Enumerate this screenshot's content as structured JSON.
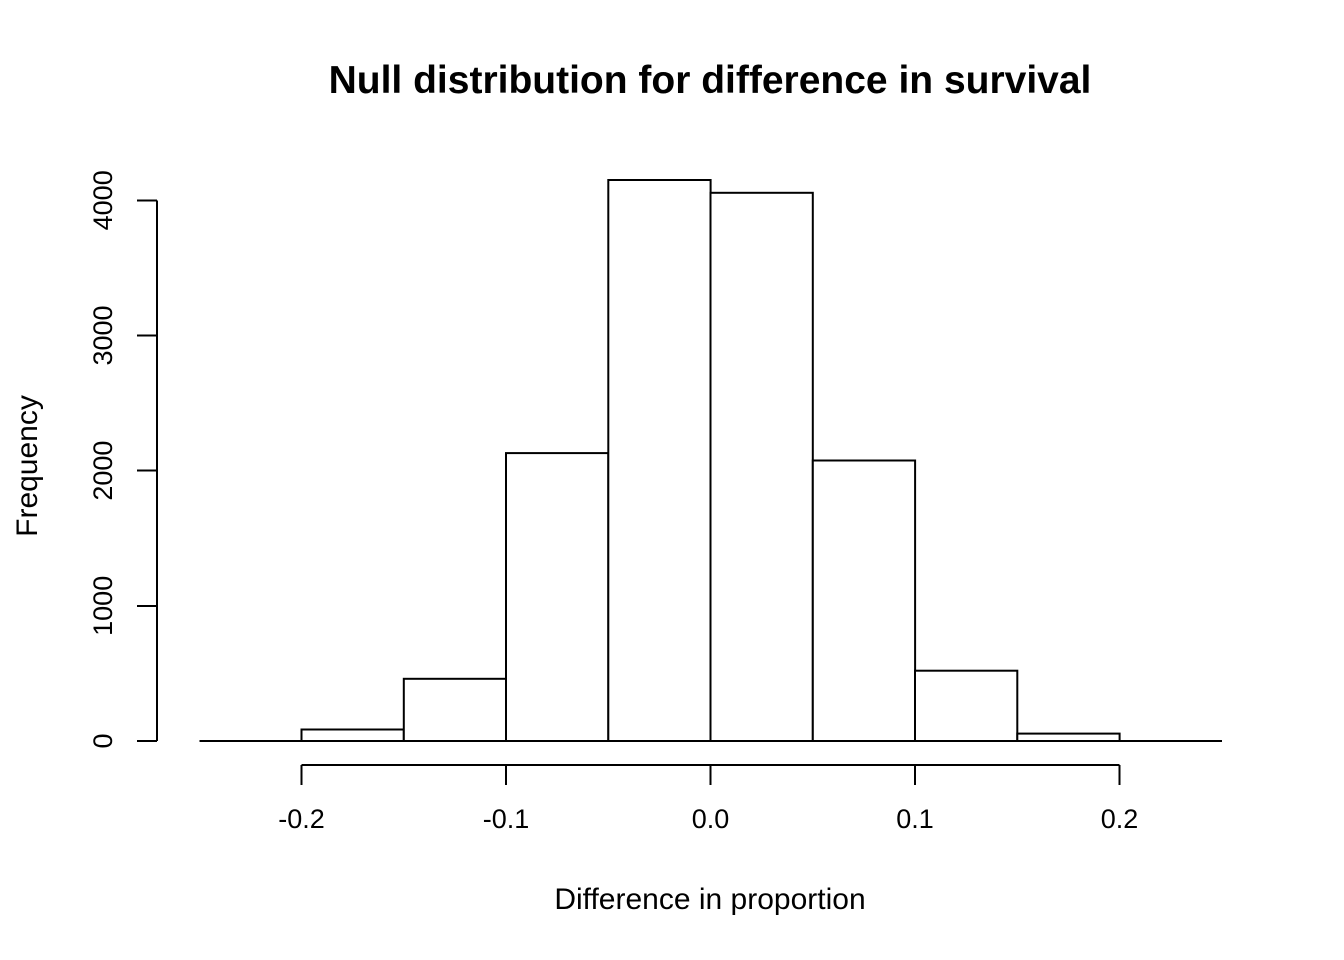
{
  "figure": {
    "title": "Null distribution for difference in survival",
    "xlabel": "Difference in proportion",
    "ylabel": "Frequency"
  },
  "colors": {
    "background": "#ffffff",
    "bar_fill": "#ffffff",
    "bar_stroke": "#000000",
    "axis": "#000000",
    "text": "#000000"
  },
  "chart_data": {
    "type": "bar",
    "subtype": "histogram",
    "title": "Null distribution for difference in survival",
    "xlabel": "Difference in proportion",
    "ylabel": "Frequency",
    "bin_breaks": [
      -0.2,
      -0.15,
      -0.1,
      -0.05,
      0.0,
      0.05,
      0.1,
      0.15,
      0.2
    ],
    "counts": [
      85,
      460,
      2130,
      4150,
      4055,
      2075,
      520,
      55
    ],
    "x_ticks": [
      -0.2,
      -0.1,
      0.0,
      0.1,
      0.2
    ],
    "x_tick_labels": [
      "-0.2",
      "-0.1",
      "0.0",
      "0.1",
      "0.2"
    ],
    "y_ticks": [
      0,
      1000,
      2000,
      3000,
      4000
    ],
    "y_tick_labels": [
      "0",
      "1000",
      "2000",
      "3000",
      "4000"
    ],
    "xlim": [
      -0.25,
      0.25
    ],
    "ylim": [
      0,
      4150
    ],
    "grid": false,
    "legend": null
  }
}
